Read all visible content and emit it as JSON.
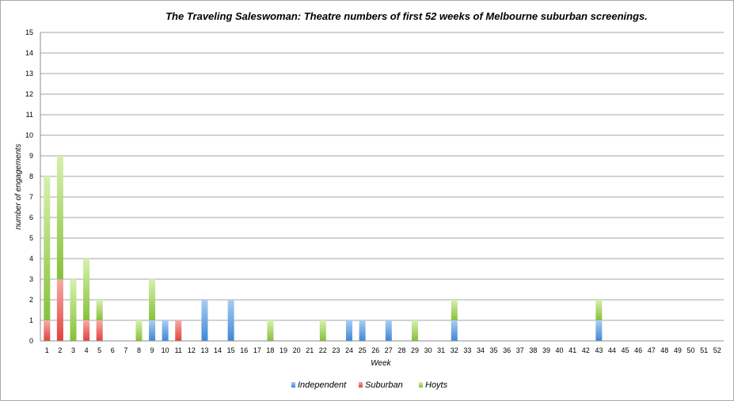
{
  "chart_data": {
    "type": "bar",
    "stacked": true,
    "title": "The Traveling Saleswoman: Theatre numbers of first 52 weeks of Melbourne suburban screenings.",
    "xlabel": "Week",
    "ylabel": "number of engagements",
    "ylim": [
      0,
      15
    ],
    "yticks": [
      0,
      1,
      2,
      3,
      4,
      5,
      6,
      7,
      8,
      9,
      10,
      11,
      12,
      13,
      14,
      15
    ],
    "grid": true,
    "legend_position": "bottom",
    "categories": [
      "1",
      "2",
      "3",
      "4",
      "5",
      "6",
      "7",
      "8",
      "9",
      "10",
      "11",
      "12",
      "13",
      "14",
      "15",
      "16",
      "17",
      "18",
      "19",
      "20",
      "21",
      "22",
      "23",
      "24",
      "25",
      "26",
      "27",
      "28",
      "29",
      "30",
      "31",
      "32",
      "33",
      "34",
      "35",
      "36",
      "37",
      "38",
      "39",
      "40",
      "41",
      "42",
      "43",
      "44",
      "45",
      "46",
      "47",
      "48",
      "49",
      "50",
      "51",
      "52"
    ],
    "series": [
      {
        "name": "Independent",
        "color": "#4a90d9",
        "values": [
          0,
          0,
          0,
          0,
          0,
          0,
          0,
          0,
          1,
          1,
          0,
          0,
          2,
          0,
          2,
          0,
          0,
          0,
          0,
          0,
          0,
          0,
          0,
          1,
          1,
          0,
          1,
          0,
          0,
          0,
          0,
          1,
          0,
          0,
          0,
          0,
          0,
          0,
          0,
          0,
          0,
          0,
          1,
          0,
          0,
          0,
          0,
          0,
          0,
          0,
          0,
          0
        ]
      },
      {
        "name": "Suburban",
        "color": "#e8504a",
        "values": [
          1,
          3,
          0,
          1,
          1,
          0,
          0,
          0,
          0,
          0,
          1,
          0,
          0,
          0,
          0,
          0,
          0,
          0,
          0,
          0,
          0,
          0,
          0,
          0,
          0,
          0,
          0,
          0,
          0,
          0,
          0,
          0,
          0,
          0,
          0,
          0,
          0,
          0,
          0,
          0,
          0,
          0,
          0,
          0,
          0,
          0,
          0,
          0,
          0,
          0,
          0,
          0
        ]
      },
      {
        "name": "Hoyts",
        "color": "#8dc63f",
        "values": [
          7,
          6,
          3,
          3,
          1,
          0,
          0,
          1,
          2,
          0,
          0,
          0,
          0,
          0,
          0,
          0,
          0,
          1,
          0,
          0,
          0,
          1,
          0,
          0,
          0,
          0,
          0,
          0,
          1,
          0,
          0,
          1,
          0,
          0,
          0,
          0,
          0,
          0,
          0,
          0,
          0,
          0,
          1,
          0,
          0,
          0,
          0,
          0,
          0,
          0,
          0,
          0
        ]
      }
    ]
  }
}
